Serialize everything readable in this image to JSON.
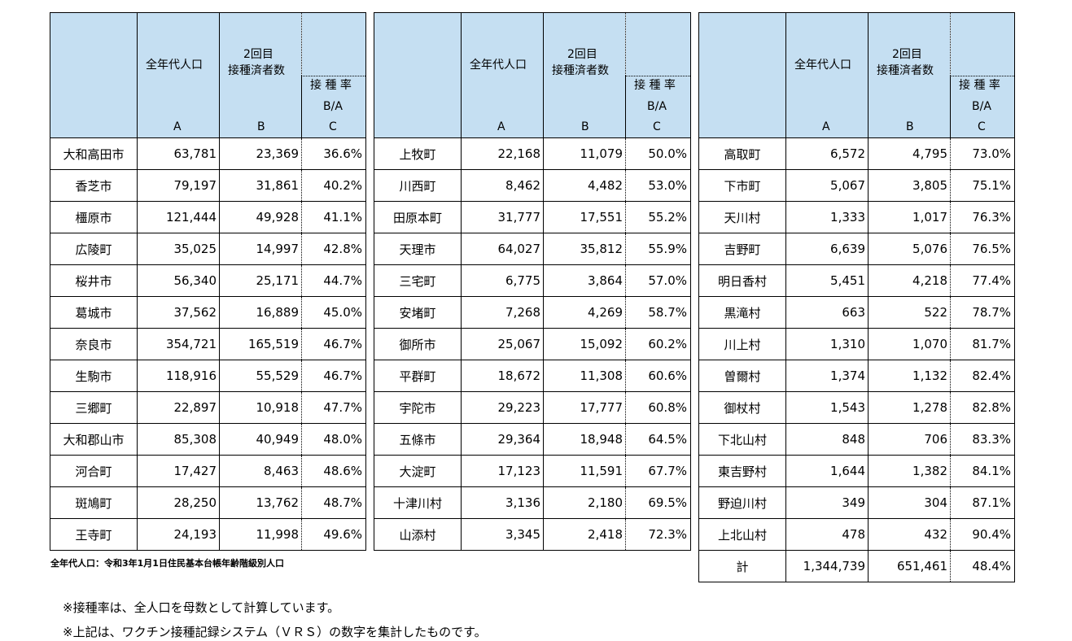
{
  "headers": {
    "population": "全年代人口",
    "second_line1": "2回目",
    "second_line2": "接種済者数",
    "rate_line1": "接 種 率",
    "rate_line2": "B/A",
    "col_a": "A",
    "col_b": "B",
    "col_c": "C"
  },
  "table1": [
    {
      "name": "大和高田市",
      "a": "63,781",
      "b": "23,369",
      "c": "36.6%"
    },
    {
      "name": "香芝市",
      "a": "79,197",
      "b": "31,861",
      "c": "40.2%"
    },
    {
      "name": "橿原市",
      "a": "121,444",
      "b": "49,928",
      "c": "41.1%"
    },
    {
      "name": "広陵町",
      "a": "35,025",
      "b": "14,997",
      "c": "42.8%"
    },
    {
      "name": "桜井市",
      "a": "56,340",
      "b": "25,171",
      "c": "44.7%"
    },
    {
      "name": "葛城市",
      "a": "37,562",
      "b": "16,889",
      "c": "45.0%"
    },
    {
      "name": "奈良市",
      "a": "354,721",
      "b": "165,519",
      "c": "46.7%"
    },
    {
      "name": "生駒市",
      "a": "118,916",
      "b": "55,529",
      "c": "46.7%"
    },
    {
      "name": "三郷町",
      "a": "22,897",
      "b": "10,918",
      "c": "47.7%"
    },
    {
      "name": "大和郡山市",
      "a": "85,308",
      "b": "40,949",
      "c": "48.0%"
    },
    {
      "name": "河合町",
      "a": "17,427",
      "b": "8,463",
      "c": "48.6%"
    },
    {
      "name": "斑鳩町",
      "a": "28,250",
      "b": "13,762",
      "c": "48.7%"
    },
    {
      "name": "王寺町",
      "a": "24,193",
      "b": "11,998",
      "c": "49.6%"
    }
  ],
  "table2": [
    {
      "name": "上牧町",
      "a": "22,168",
      "b": "11,079",
      "c": "50.0%"
    },
    {
      "name": "川西町",
      "a": "8,462",
      "b": "4,482",
      "c": "53.0%"
    },
    {
      "name": "田原本町",
      "a": "31,777",
      "b": "17,551",
      "c": "55.2%"
    },
    {
      "name": "天理市",
      "a": "64,027",
      "b": "35,812",
      "c": "55.9%"
    },
    {
      "name": "三宅町",
      "a": "6,775",
      "b": "3,864",
      "c": "57.0%"
    },
    {
      "name": "安堵町",
      "a": "7,268",
      "b": "4,269",
      "c": "58.7%"
    },
    {
      "name": "御所市",
      "a": "25,067",
      "b": "15,092",
      "c": "60.2%"
    },
    {
      "name": "平群町",
      "a": "18,672",
      "b": "11,308",
      "c": "60.6%"
    },
    {
      "name": "宇陀市",
      "a": "29,223",
      "b": "17,777",
      "c": "60.8%"
    },
    {
      "name": "五條市",
      "a": "29,364",
      "b": "18,948",
      "c": "64.5%"
    },
    {
      "name": "大淀町",
      "a": "17,123",
      "b": "11,591",
      "c": "67.7%"
    },
    {
      "name": "十津川村",
      "a": "3,136",
      "b": "2,180",
      "c": "69.5%"
    },
    {
      "name": "山添村",
      "a": "3,345",
      "b": "2,418",
      "c": "72.3%"
    }
  ],
  "table3": [
    {
      "name": "高取町",
      "a": "6,572",
      "b": "4,795",
      "c": "73.0%"
    },
    {
      "name": "下市町",
      "a": "5,067",
      "b": "3,805",
      "c": "75.1%"
    },
    {
      "name": "天川村",
      "a": "1,333",
      "b": "1,017",
      "c": "76.3%"
    },
    {
      "name": "吉野町",
      "a": "6,639",
      "b": "5,076",
      "c": "76.5%"
    },
    {
      "name": "明日香村",
      "a": "5,451",
      "b": "4,218",
      "c": "77.4%"
    },
    {
      "name": "黒滝村",
      "a": "663",
      "b": "522",
      "c": "78.7%"
    },
    {
      "name": "川上村",
      "a": "1,310",
      "b": "1,070",
      "c": "81.7%"
    },
    {
      "name": "曽爾村",
      "a": "1,374",
      "b": "1,132",
      "c": "82.4%"
    },
    {
      "name": "御杖村",
      "a": "1,543",
      "b": "1,278",
      "c": "82.8%"
    },
    {
      "name": "下北山村",
      "a": "848",
      "b": "706",
      "c": "83.3%"
    },
    {
      "name": "東吉野村",
      "a": "1,644",
      "b": "1,382",
      "c": "84.1%"
    },
    {
      "name": "野迫川村",
      "a": "349",
      "b": "304",
      "c": "87.1%"
    },
    {
      "name": "上北山村",
      "a": "478",
      "b": "432",
      "c": "90.4%"
    }
  ],
  "total": {
    "name": "計",
    "a": "1,344,739",
    "b": "651,461",
    "c": "48.4%"
  },
  "source_note": "全年代人口：令和3年1月1日住民基本台帳年齢階級別人口",
  "footnotes": [
    "※接種率は、全人口を母数として計算しています。",
    "※上記は、ワクチン接種記録システム（ＶＲＳ）の数字を集計したものです。"
  ]
}
